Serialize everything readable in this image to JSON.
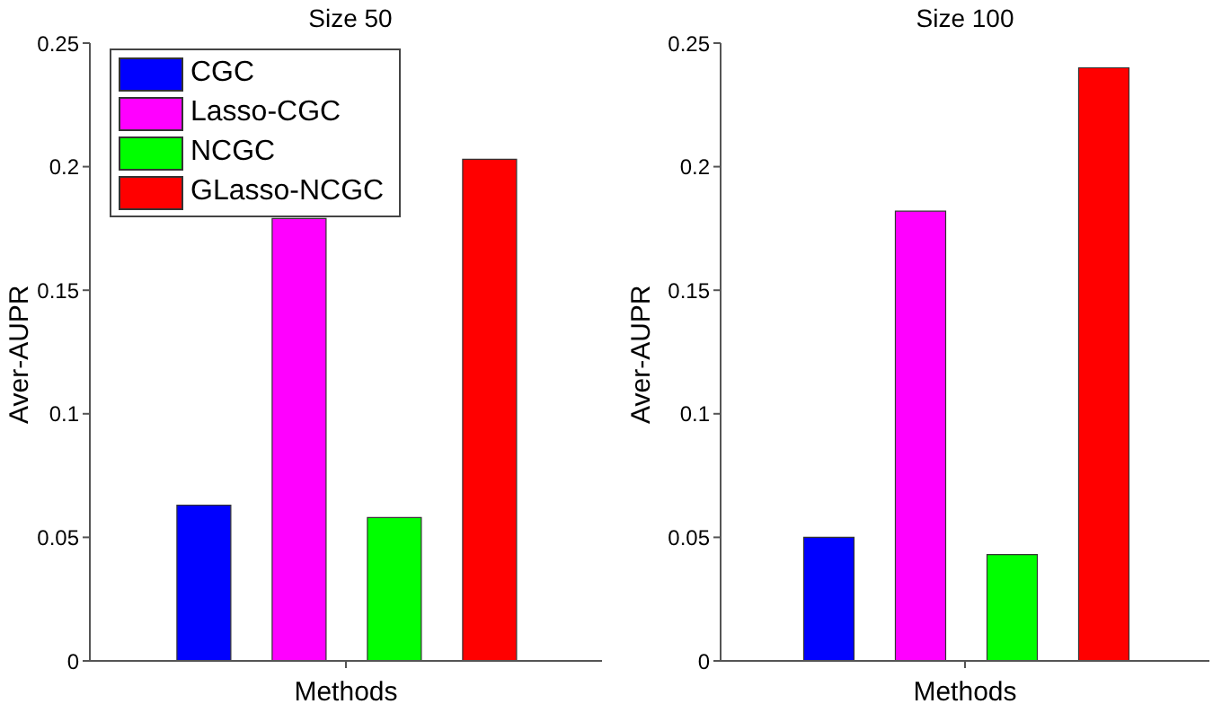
{
  "chart_data": [
    {
      "type": "bar",
      "title": "Size 50",
      "xlabel": "Methods",
      "ylabel": "Aver-AUPR",
      "categories": [
        null
      ],
      "ylim": [
        0,
        0.25
      ],
      "yticks": [
        0,
        0.05,
        0.1,
        0.15,
        0.2,
        0.25
      ],
      "grid": false,
      "legend": "top left",
      "series": [
        {
          "name": "CGC",
          "color": "#0000ff",
          "values": [
            0.063
          ]
        },
        {
          "name": "Lasso-CGC",
          "color": "#ff00ff",
          "values": [
            0.179
          ]
        },
        {
          "name": "NCGC",
          "color": "#00ff00",
          "values": [
            0.058
          ]
        },
        {
          "name": "GLasso-NCGC",
          "color": "#ff0000",
          "values": [
            0.203
          ]
        }
      ]
    },
    {
      "type": "bar",
      "title": "Size 100",
      "xlabel": "Methods",
      "ylabel": "Aver-AUPR",
      "categories": [
        null
      ],
      "ylim": [
        0,
        0.25
      ],
      "yticks": [
        0,
        0.05,
        0.1,
        0.15,
        0.2,
        0.25
      ],
      "grid": false,
      "series": [
        {
          "color": "#0000ff",
          "values": [
            0.05
          ]
        },
        {
          "color": "#ff00ff",
          "values": [
            0.182
          ]
        },
        {
          "color": "#00ff00",
          "values": [
            0.043
          ]
        },
        {
          "color": "#ff0000",
          "values": [
            0.24
          ]
        }
      ]
    }
  ]
}
